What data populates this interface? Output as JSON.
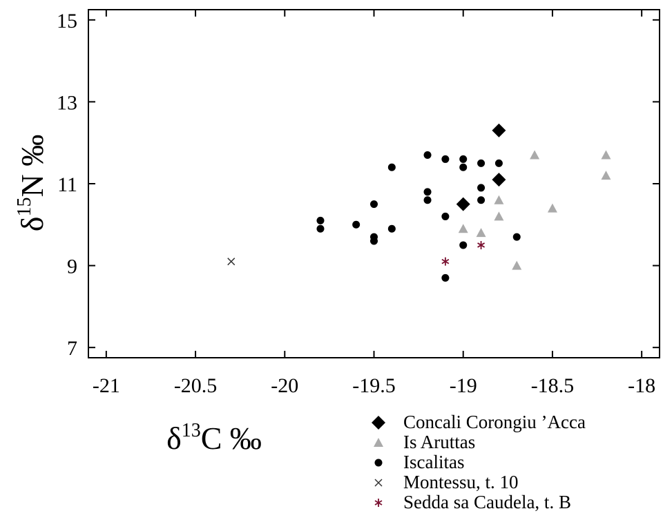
{
  "chart_data": {
    "type": "scatter",
    "x_label": {
      "symbol": "δ",
      "mass": "13",
      "rest": "C ‰"
    },
    "y_label": {
      "symbol": "δ",
      "mass": "15",
      "rest": "N ‰"
    },
    "xlim": [
      -21.1,
      -17.9
    ],
    "ylim": [
      6.75,
      15.25
    ],
    "xticks": [
      -21,
      -20.5,
      -20,
      -19.5,
      -19,
      -18.5,
      -18
    ],
    "yticks": [
      7,
      9,
      11,
      13,
      15
    ],
    "series": [
      {
        "name": "Concali Corongiu ’Acca",
        "color": "#000000",
        "marker": "diamond",
        "x": [
          -18.8,
          -18.8,
          -19.0
        ],
        "values": [
          12.3,
          11.1,
          10.5
        ]
      },
      {
        "name": "Is Aruttas",
        "color": "#aaaaaa",
        "marker": "triangle",
        "x": [
          -18.6,
          -18.2,
          -18.2,
          -18.5,
          -18.8,
          -18.8,
          -19.0,
          -18.9,
          -18.7
        ],
        "values": [
          11.7,
          11.7,
          11.2,
          10.4,
          10.6,
          10.2,
          9.9,
          9.8,
          9.0
        ]
      },
      {
        "name": "Iscalitas",
        "color": "#000000",
        "marker": "circle",
        "x": [
          -19.8,
          -19.8,
          -19.6,
          -19.5,
          -19.5,
          -19.5,
          -19.4,
          -19.4,
          -19.2,
          -19.2,
          -19.2,
          -19.1,
          -19.1,
          -19.1,
          -19.0,
          -19.0,
          -19.0,
          -18.9,
          -18.9,
          -18.9,
          -18.8,
          -18.7
        ],
        "values": [
          10.1,
          9.9,
          10.0,
          10.5,
          9.7,
          9.6,
          11.4,
          9.9,
          11.7,
          10.8,
          10.6,
          11.6,
          10.2,
          8.7,
          11.6,
          11.4,
          9.5,
          11.5,
          10.9,
          10.6,
          11.5,
          9.7
        ]
      },
      {
        "name": "Montessu, t. 10",
        "color": "#333333",
        "marker": "x",
        "x": [
          -20.3
        ],
        "values": [
          9.1
        ]
      },
      {
        "name": "Sedda sa Caudela, t. B",
        "color": "#7a1030",
        "marker": "asterisk",
        "x": [
          -19.1,
          -18.9
        ],
        "values": [
          9.1,
          9.5
        ]
      }
    ]
  }
}
